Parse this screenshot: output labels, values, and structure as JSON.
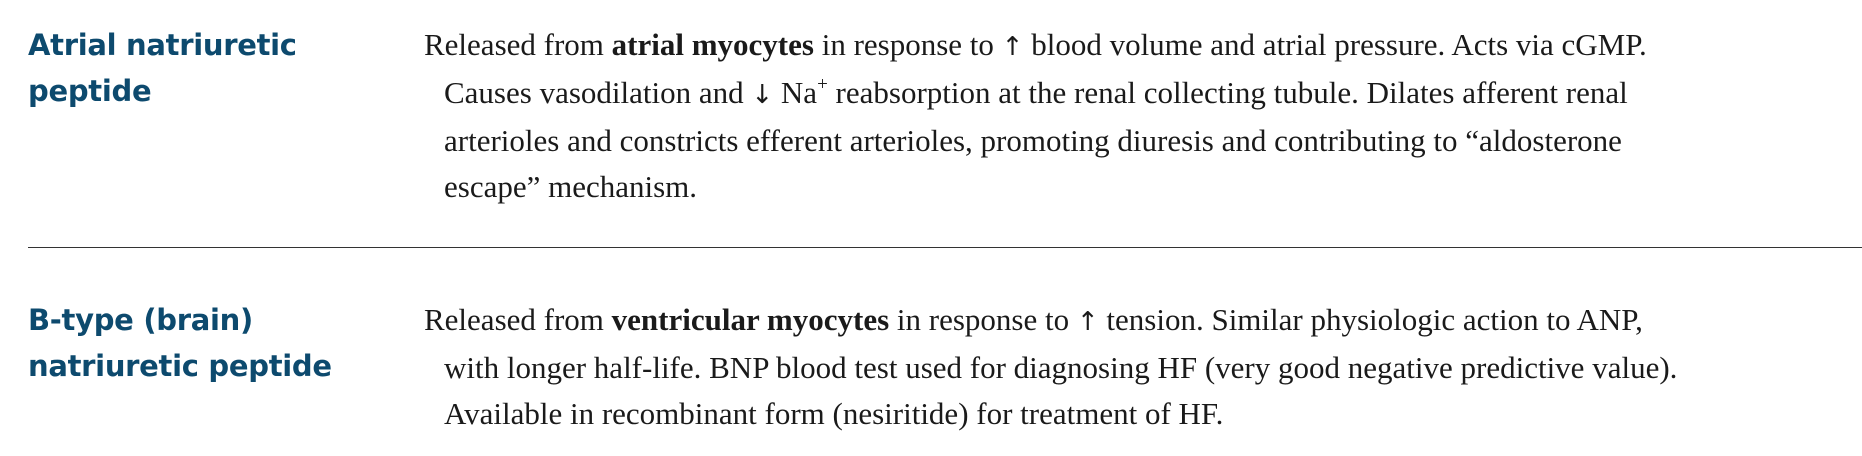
{
  "entries": [
    {
      "term_lines": [
        "Atrial natriuretic",
        "peptide"
      ],
      "lines": [
        {
          "pre": "Released from ",
          "bold": "atrial myocytes",
          "mid": " in response to ",
          "arrow": "↑",
          "post": " blood volume and atrial pressure. Acts via cGMP."
        },
        {
          "pre": "Causes vasodilation and ",
          "arrow": "↓",
          "mid": " Na",
          "sup": "+",
          "post": " reabsorption at the renal collecting tubule. Dilates afferent renal"
        },
        {
          "text": "arterioles and constricts efferent arterioles, promoting diuresis and contributing to “aldosterone"
        },
        {
          "text": "escape” mechanism."
        }
      ]
    },
    {
      "term_lines": [
        "B-type (brain)",
        "natriuretic peptide"
      ],
      "lines": [
        {
          "pre": "Released from ",
          "bold": "ventricular myocytes",
          "mid": " in response to ",
          "arrow": "↑",
          "post": " tension. Similar physiologic action to ANP,"
        },
        {
          "text": "with longer half-life. BNP blood test used for diagnosing HF (very good negative predictive value)."
        },
        {
          "text": "Available in recombinant form (nesiritide) for treatment of HF."
        }
      ]
    }
  ],
  "colors": {
    "term": "#0d4a6e",
    "body_text": "#1a1a1a",
    "divider": "#333333"
  }
}
